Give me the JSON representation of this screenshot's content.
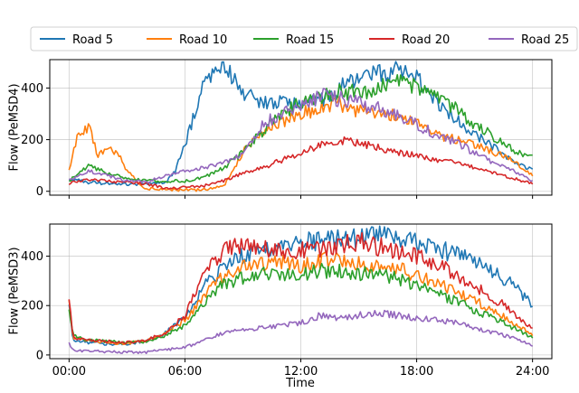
{
  "legend": [
    {
      "name": "Road 5",
      "color": "#1f77b4"
    },
    {
      "name": "Road 10",
      "color": "#ff7f0e"
    },
    {
      "name": "Road 15",
      "color": "#2ca02c"
    },
    {
      "name": "Road 20",
      "color": "#d62728"
    },
    {
      "name": "Road 25",
      "color": "#9467bd"
    }
  ],
  "chart_data": [
    {
      "type": "line",
      "xlabel": "",
      "ylabel": "Flow (PeMSD4)",
      "x_unit": "hours",
      "xlim": [
        -1,
        25
      ],
      "ylim": [
        -15,
        510
      ],
      "yticks": [
        0,
        200,
        400
      ],
      "grid": true,
      "x_tick_labels": [],
      "series": [
        {
          "name": "Road 5",
          "color": "#1f77b4",
          "x": [
            0,
            1,
            2,
            3,
            4,
            5,
            5.5,
            6,
            6.5,
            7,
            7.5,
            8,
            8.5,
            9,
            10,
            11,
            12,
            13,
            14,
            15,
            16,
            17,
            18,
            19,
            20,
            21,
            22,
            23,
            24
          ],
          "y": [
            50,
            35,
            30,
            28,
            26,
            35,
            80,
            180,
            300,
            420,
            470,
            480,
            440,
            380,
            340,
            340,
            350,
            350,
            400,
            430,
            450,
            470,
            440,
            350,
            280,
            220,
            170,
            120,
            80
          ]
        },
        {
          "name": "Road 10",
          "color": "#ff7f0e",
          "x": [
            0,
            0.5,
            1,
            1.5,
            2,
            2.5,
            3,
            3.5,
            4,
            5,
            6,
            7,
            8,
            9,
            10,
            11,
            12,
            13,
            14,
            15,
            16,
            17,
            18,
            19,
            20,
            21,
            22,
            23,
            24
          ],
          "y": [
            80,
            230,
            250,
            140,
            170,
            150,
            80,
            40,
            10,
            5,
            5,
            5,
            20,
            150,
            230,
            270,
            300,
            320,
            340,
            310,
            300,
            290,
            260,
            220,
            200,
            180,
            150,
            120,
            60
          ]
        },
        {
          "name": "Road 15",
          "color": "#2ca02c",
          "x": [
            0,
            1,
            2,
            3,
            4,
            5,
            6,
            7,
            8,
            9,
            10,
            11,
            12,
            13,
            14,
            15,
            16,
            17,
            18,
            19,
            20,
            21,
            22,
            23,
            24
          ],
          "y": [
            40,
            100,
            70,
            50,
            40,
            40,
            40,
            55,
            90,
            150,
            230,
            300,
            340,
            370,
            390,
            380,
            410,
            420,
            400,
            380,
            320,
            260,
            210,
            160,
            130
          ]
        },
        {
          "name": "Road 20",
          "color": "#d62728",
          "x": [
            0,
            1,
            2,
            3,
            4,
            5,
            6,
            7,
            8,
            9,
            10,
            11,
            12,
            13,
            14,
            15,
            16,
            17,
            18,
            19,
            20,
            21,
            22,
            23,
            24
          ],
          "y": [
            30,
            45,
            40,
            35,
            30,
            10,
            15,
            20,
            40,
            70,
            90,
            120,
            150,
            180,
            200,
            190,
            170,
            150,
            140,
            120,
            110,
            90,
            70,
            50,
            30
          ]
        },
        {
          "name": "Road 25",
          "color": "#9467bd",
          "x": [
            0,
            1,
            2,
            3,
            4,
            5,
            6,
            7,
            8,
            9,
            10,
            11,
            12,
            13,
            14,
            15,
            16,
            17,
            18,
            19,
            20,
            21,
            22,
            23,
            24
          ],
          "y": [
            40,
            80,
            60,
            40,
            35,
            60,
            80,
            90,
            110,
            150,
            260,
            300,
            340,
            370,
            360,
            340,
            320,
            290,
            260,
            220,
            190,
            150,
            110,
            80,
            40
          ]
        }
      ]
    },
    {
      "type": "line",
      "xlabel": "Time",
      "ylabel": "Flow (PeMSD3)",
      "x_unit": "hours",
      "xlim": [
        -1,
        25
      ],
      "ylim": [
        -15,
        530
      ],
      "yticks": [
        0,
        200,
        400
      ],
      "grid": true,
      "x_tick_labels": [
        {
          "x": 0,
          "label": "00:00"
        },
        {
          "x": 6,
          "label": "06:00"
        },
        {
          "x": 12,
          "label": "12:00"
        },
        {
          "x": 18,
          "label": "18:00"
        },
        {
          "x": 24,
          "label": "24:00"
        }
      ],
      "series": [
        {
          "name": "Road 5",
          "color": "#1f77b4",
          "x": [
            0,
            0.2,
            1,
            2,
            3,
            4,
            5,
            6,
            7,
            8,
            9,
            10,
            11,
            12,
            13,
            14,
            15,
            16,
            17,
            18,
            19,
            20,
            21,
            22,
            23,
            24
          ],
          "y": [
            200,
            60,
            50,
            45,
            45,
            55,
            90,
            150,
            280,
            350,
            400,
            430,
            450,
            470,
            460,
            470,
            470,
            480,
            470,
            460,
            430,
            410,
            380,
            340,
            280,
            200
          ]
        },
        {
          "name": "Road 10",
          "color": "#ff7f0e",
          "x": [
            0,
            0.2,
            1,
            2,
            3,
            4,
            5,
            6,
            7,
            8,
            9,
            10,
            11,
            12,
            13,
            14,
            15,
            16,
            17,
            18,
            19,
            20,
            21,
            22,
            23,
            24
          ],
          "y": [
            210,
            70,
            60,
            50,
            45,
            60,
            90,
            140,
            240,
            320,
            360,
            370,
            380,
            360,
            380,
            390,
            370,
            360,
            350,
            320,
            290,
            260,
            220,
            180,
            130,
            80
          ]
        },
        {
          "name": "Road 15",
          "color": "#2ca02c",
          "x": [
            0,
            0.2,
            1,
            2,
            3,
            4,
            5,
            6,
            7,
            8,
            9,
            10,
            11,
            12,
            13,
            14,
            15,
            16,
            17,
            18,
            19,
            20,
            21,
            22,
            23,
            24
          ],
          "y": [
            180,
            80,
            60,
            55,
            50,
            55,
            80,
            120,
            210,
            290,
            310,
            330,
            320,
            330,
            340,
            340,
            330,
            330,
            310,
            280,
            250,
            220,
            180,
            150,
            110,
            70
          ]
        },
        {
          "name": "Road 20",
          "color": "#d62728",
          "x": [
            0,
            0.2,
            1,
            2,
            3,
            4,
            5,
            6,
            7,
            8,
            9,
            10,
            11,
            12,
            13,
            14,
            15,
            16,
            17,
            18,
            19,
            20,
            21,
            22,
            23,
            24
          ],
          "y": [
            230,
            70,
            60,
            55,
            50,
            60,
            90,
            160,
            320,
            420,
            450,
            440,
            420,
            430,
            430,
            450,
            460,
            440,
            420,
            400,
            370,
            330,
            280,
            230,
            170,
            110
          ]
        },
        {
          "name": "Road 25",
          "color": "#9467bd",
          "x": [
            0,
            0.2,
            1,
            2,
            3,
            4,
            5,
            6,
            7,
            8,
            9,
            10,
            11,
            12,
            13,
            14,
            15,
            16,
            17,
            18,
            19,
            20,
            21,
            22,
            23,
            24
          ],
          "y": [
            45,
            20,
            15,
            12,
            10,
            12,
            20,
            30,
            60,
            90,
            100,
            110,
            120,
            130,
            160,
            150,
            160,
            170,
            160,
            150,
            140,
            130,
            110,
            90,
            70,
            40
          ]
        }
      ]
    }
  ]
}
